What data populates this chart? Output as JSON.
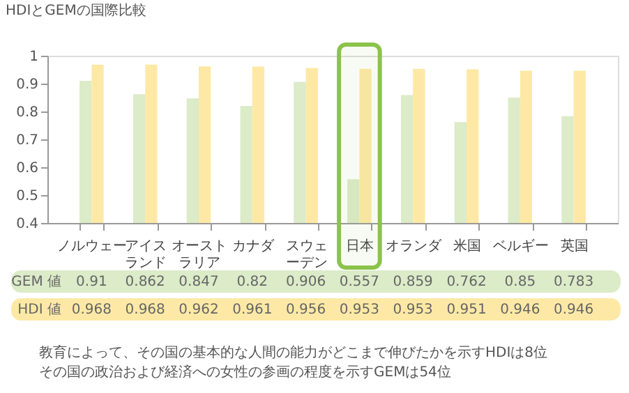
{
  "chart_data": {
    "type": "bar",
    "title": "HDIとGEMの国際比較",
    "categories": [
      "ノルウェー",
      "アイスランド",
      "オーストラリア",
      "カナダ",
      "スウェーデン",
      "日本",
      "オランダ",
      "米国",
      "ベルギー",
      "英国"
    ],
    "series": [
      {
        "name": "GEM 値",
        "color": "#dcebc8",
        "values": [
          0.91,
          0.862,
          0.847,
          0.82,
          0.906,
          0.557,
          0.859,
          0.762,
          0.85,
          0.783
        ]
      },
      {
        "name": "HDI 値",
        "color": "#fde9a5",
        "values": [
          0.968,
          0.968,
          0.962,
          0.961,
          0.956,
          0.953,
          0.953,
          0.951,
          0.946,
          0.946
        ]
      }
    ],
    "ylim": [
      0.4,
      1
    ],
    "yticks": [
      0.4,
      0.5,
      0.6,
      0.7,
      0.8,
      0.9,
      1
    ],
    "data_labels": true,
    "grid": false,
    "legend": false,
    "bands": [
      {
        "axis": "x",
        "from": "日本",
        "to": "日本",
        "color": "#8bc34a"
      }
    ],
    "annotations": [
      "教育によって、その国の基本的な人間の能力がどこまで伸びたかを示すHDIは8位",
      "その国の政治および経済への女性の参画の程度を示すGEMは54位"
    ]
  }
}
